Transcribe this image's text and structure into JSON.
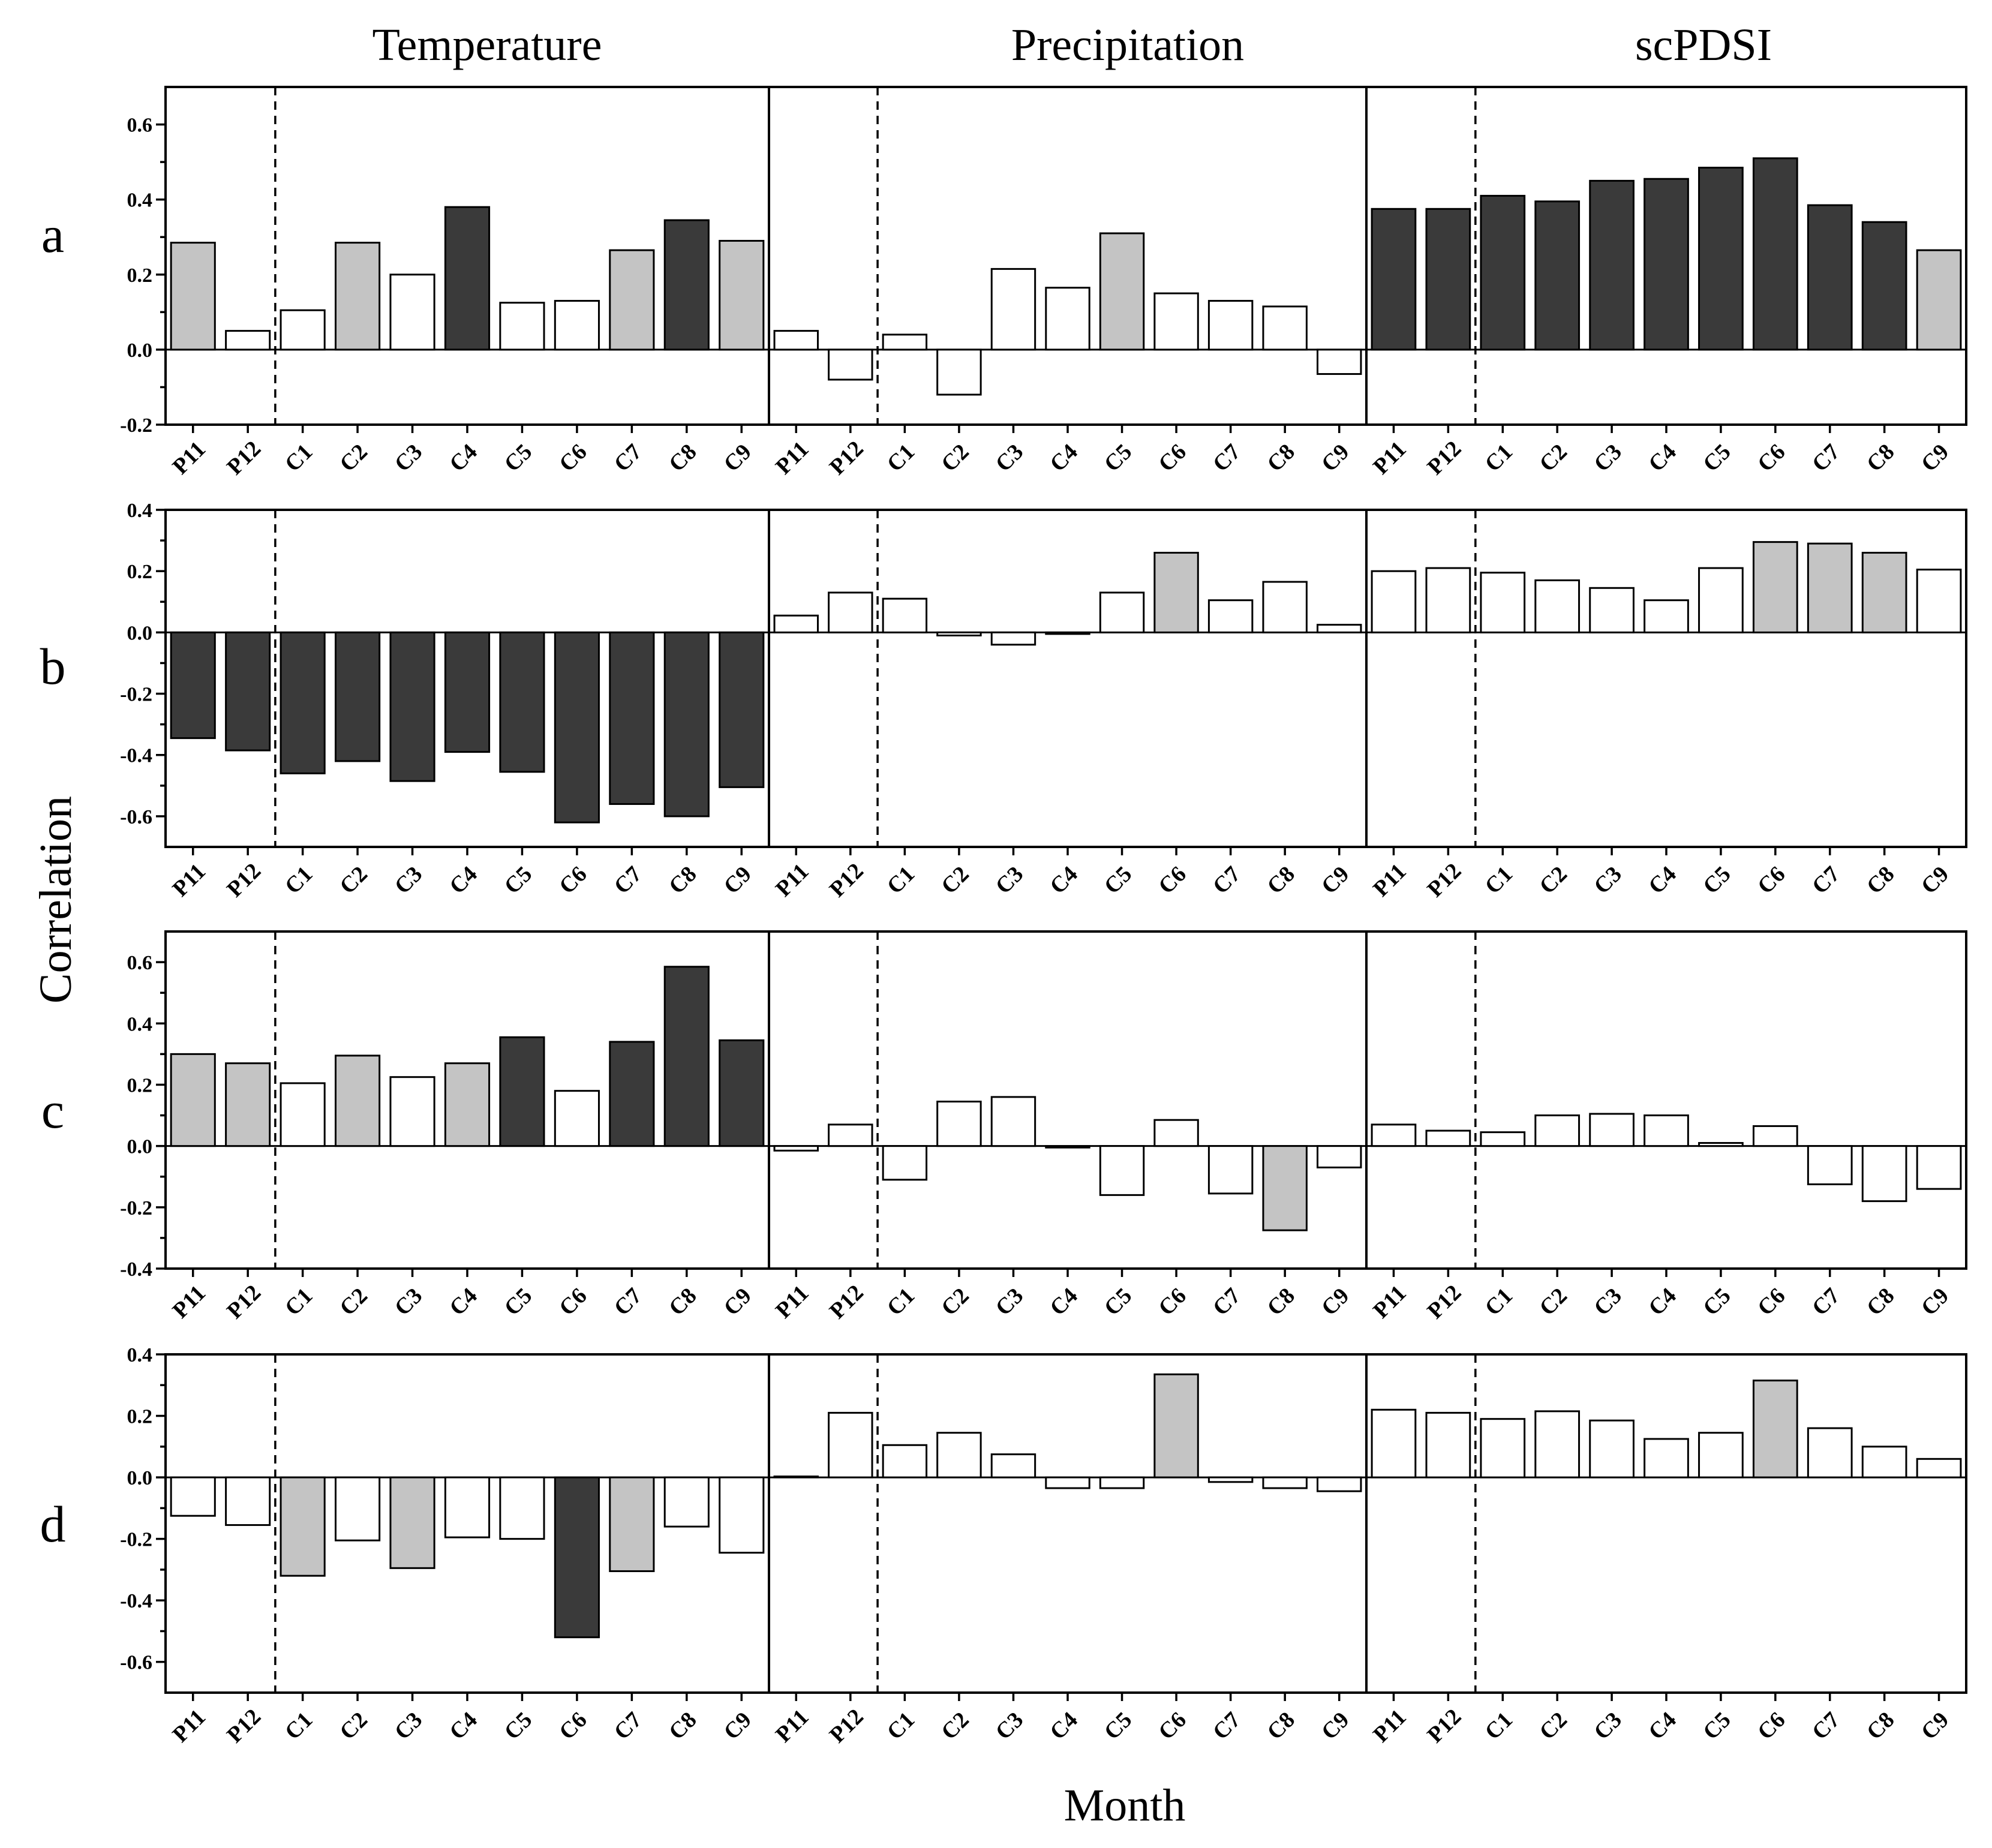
{
  "chart_data": {
    "type": "bar",
    "xlabel": "Month",
    "ylabel": "Correlation",
    "columns": [
      "Temperature",
      "Precipitation",
      "scPDSI"
    ],
    "categories": [
      "P11",
      "P12",
      "C1",
      "C2",
      "C3",
      "C4",
      "C5",
      "C6",
      "C7",
      "C8",
      "C9"
    ],
    "colors": {
      "significant_strong": "#3a3a3a",
      "significant": "#c4c4c4",
      "not_significant": "#ffffff"
    },
    "rows": [
      {
        "label": "a",
        "ylim": [
          -0.2,
          0.7
        ],
        "yticks": [
          "-0.2",
          "0.0",
          "0.2",
          "0.4",
          "0.6"
        ],
        "series": [
          {
            "name": "Temperature",
            "values": [
              0.285,
              0.05,
              0.105,
              0.285,
              0.2,
              0.38,
              0.125,
              0.13,
              0.265,
              0.345,
              0.29
            ],
            "sig": [
              "grey",
              "white",
              "white",
              "grey",
              "white",
              "dark",
              "white",
              "white",
              "grey",
              "dark",
              "grey"
            ]
          },
          {
            "name": "Precipitation",
            "values": [
              0.05,
              -0.08,
              0.04,
              -0.12,
              0.215,
              0.165,
              0.31,
              0.15,
              0.13,
              0.115,
              -0.065
            ],
            "sig": [
              "white",
              "white",
              "white",
              "white",
              "white",
              "white",
              "grey",
              "white",
              "white",
              "white",
              "white"
            ]
          },
          {
            "name": "scPDSI",
            "values": [
              0.375,
              0.375,
              0.41,
              0.395,
              0.45,
              0.455,
              0.485,
              0.51,
              0.385,
              0.34,
              0.265
            ],
            "sig": [
              "dark",
              "dark",
              "dark",
              "dark",
              "dark",
              "dark",
              "dark",
              "dark",
              "dark",
              "dark",
              "grey"
            ]
          }
        ]
      },
      {
        "label": "b",
        "ylim": [
          -0.7,
          0.4
        ],
        "yticks": [
          "-0.6",
          "-0.4",
          "-0.2",
          "0.0",
          "0.2",
          "0.4"
        ],
        "series": [
          {
            "name": "Temperature",
            "values": [
              -0.345,
              -0.385,
              -0.46,
              -0.42,
              -0.485,
              -0.39,
              -0.455,
              -0.62,
              -0.56,
              -0.6,
              -0.505
            ],
            "sig": [
              "dark",
              "dark",
              "dark",
              "dark",
              "dark",
              "dark",
              "dark",
              "dark",
              "dark",
              "dark",
              "dark"
            ]
          },
          {
            "name": "Precipitation",
            "values": [
              0.055,
              0.13,
              0.11,
              -0.01,
              -0.04,
              -0.005,
              0.13,
              0.26,
              0.105,
              0.165,
              0.025
            ],
            "sig": [
              "white",
              "white",
              "white",
              "white",
              "white",
              "white",
              "white",
              "grey",
              "white",
              "white",
              "white"
            ]
          },
          {
            "name": "scPDSI",
            "values": [
              0.2,
              0.21,
              0.195,
              0.17,
              0.145,
              0.105,
              0.21,
              0.295,
              0.29,
              0.26,
              0.205
            ],
            "sig": [
              "white",
              "white",
              "white",
              "white",
              "white",
              "white",
              "white",
              "grey",
              "grey",
              "grey",
              "white"
            ]
          }
        ]
      },
      {
        "label": "c",
        "ylim": [
          -0.4,
          0.7
        ],
        "yticks": [
          "-0.4",
          "-0.2",
          "0.0",
          "0.2",
          "0.4",
          "0.6"
        ],
        "series": [
          {
            "name": "Temperature",
            "values": [
              0.3,
              0.27,
              0.205,
              0.295,
              0.225,
              0.27,
              0.355,
              0.18,
              0.34,
              0.585,
              0.345
            ],
            "sig": [
              "grey",
              "grey",
              "white",
              "grey",
              "white",
              "grey",
              "dark",
              "white",
              "dark",
              "dark",
              "dark"
            ]
          },
          {
            "name": "Precipitation",
            "values": [
              -0.015,
              0.07,
              -0.11,
              0.145,
              0.16,
              -0.005,
              -0.16,
              0.085,
              -0.155,
              -0.275,
              -0.07
            ],
            "sig": [
              "white",
              "white",
              "white",
              "white",
              "white",
              "white",
              "white",
              "white",
              "white",
              "grey",
              "white"
            ]
          },
          {
            "name": "scPDSI",
            "values": [
              0.07,
              0.05,
              0.045,
              0.1,
              0.105,
              0.1,
              0.01,
              0.065,
              -0.125,
              -0.18,
              -0.14
            ],
            "sig": [
              "white",
              "white",
              "white",
              "white",
              "white",
              "white",
              "white",
              "white",
              "white",
              "white",
              "white"
            ]
          }
        ]
      },
      {
        "label": "d",
        "ylim": [
          -0.7,
          0.4
        ],
        "yticks": [
          "-0.6",
          "-0.4",
          "-0.2",
          "0.0",
          "0.2",
          "0.4"
        ],
        "series": [
          {
            "name": "Temperature",
            "values": [
              -0.125,
              -0.155,
              -0.32,
              -0.205,
              -0.295,
              -0.195,
              -0.2,
              -0.52,
              -0.305,
              -0.16,
              -0.245
            ],
            "sig": [
              "white",
              "white",
              "grey",
              "white",
              "grey",
              "white",
              "white",
              "dark",
              "grey",
              "white",
              "white"
            ]
          },
          {
            "name": "Precipitation",
            "values": [
              0.003,
              0.21,
              0.105,
              0.145,
              0.075,
              -0.035,
              -0.035,
              0.335,
              -0.015,
              -0.035,
              -0.045
            ],
            "sig": [
              "white",
              "white",
              "white",
              "white",
              "white",
              "white",
              "white",
              "grey",
              "white",
              "white",
              "white"
            ]
          },
          {
            "name": "scPDSI",
            "values": [
              0.22,
              0.21,
              0.19,
              0.215,
              0.185,
              0.125,
              0.145,
              0.315,
              0.16,
              0.1,
              0.06
            ],
            "sig": [
              "white",
              "white",
              "white",
              "white",
              "white",
              "white",
              "white",
              "grey",
              "white",
              "white",
              "white"
            ]
          }
        ]
      }
    ]
  }
}
